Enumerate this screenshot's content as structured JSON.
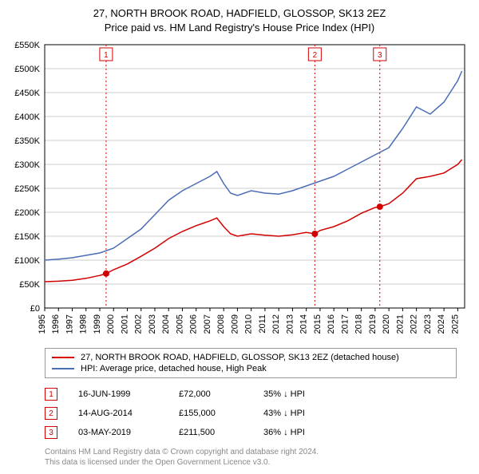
{
  "chart": {
    "type": "line",
    "title_line1": "27, NORTH BROOK ROAD, HADFIELD, GLOSSOP, SK13 2EZ",
    "title_line2": "Price paid vs. HM Land Registry's House Price Index (HPI)",
    "title_fontsize": 13,
    "background_color": "#ffffff",
    "plot_border_color": "#000000",
    "grid_color": "#cccccc",
    "axis_font_size": 11,
    "x": {
      "min": 1995,
      "max": 2025.5,
      "ticks": [
        1995,
        1996,
        1997,
        1998,
        1999,
        2000,
        2001,
        2002,
        2003,
        2004,
        2005,
        2006,
        2007,
        2008,
        2009,
        2010,
        2011,
        2012,
        2013,
        2014,
        2015,
        2016,
        2017,
        2018,
        2019,
        2020,
        2021,
        2022,
        2023,
        2024,
        2025
      ],
      "label_rotation": -90
    },
    "y": {
      "min": 0,
      "max": 550000,
      "ticks": [
        0,
        50000,
        100000,
        150000,
        200000,
        250000,
        300000,
        350000,
        400000,
        450000,
        500000,
        550000
      ],
      "tick_labels": [
        "£0",
        "£50K",
        "£100K",
        "£150K",
        "£200K",
        "£250K",
        "£300K",
        "£350K",
        "£400K",
        "£450K",
        "£500K",
        "£550K"
      ]
    },
    "series": [
      {
        "id": "property",
        "label": "27, NORTH BROOK ROAD, HADFIELD, GLOSSOP, SK13 2EZ (detached house)",
        "color": "#d40000",
        "line_width": 1.5,
        "points_x": [
          1995,
          1996,
          1997,
          1998,
          1999,
          1999.46,
          2000,
          2001,
          2002,
          2003,
          2004,
          2005,
          2006,
          2007,
          2007.5,
          2008,
          2008.5,
          2009,
          2010,
          2011,
          2012,
          2013,
          2014,
          2014.62,
          2015,
          2016,
          2017,
          2018,
          2019,
          2019.34,
          2020,
          2021,
          2022,
          2023,
          2024,
          2025,
          2025.3
        ],
        "points_y": [
          55000,
          56000,
          58000,
          62000,
          68000,
          72000,
          80000,
          92000,
          108000,
          125000,
          145000,
          160000,
          172000,
          182000,
          188000,
          170000,
          155000,
          150000,
          155000,
          152000,
          150000,
          153000,
          158000,
          155000,
          162000,
          170000,
          182000,
          198000,
          210000,
          211500,
          218000,
          240000,
          270000,
          275000,
          282000,
          300000,
          310000
        ]
      },
      {
        "id": "hpi",
        "label": "HPI: Average price, detached house, High Peak",
        "color": "#4a6db5",
        "line_width": 1.5,
        "points_x": [
          1995,
          1996,
          1997,
          1998,
          1999,
          2000,
          2001,
          2002,
          2003,
          2004,
          2005,
          2006,
          2007,
          2007.5,
          2008,
          2008.5,
          2009,
          2010,
          2011,
          2012,
          2013,
          2014,
          2015,
          2016,
          2017,
          2018,
          2019,
          2020,
          2021,
          2022,
          2023,
          2024,
          2025,
          2025.3
        ],
        "points_y": [
          100000,
          102000,
          105000,
          110000,
          115000,
          125000,
          145000,
          165000,
          195000,
          225000,
          245000,
          260000,
          275000,
          285000,
          260000,
          240000,
          235000,
          245000,
          240000,
          238000,
          245000,
          255000,
          265000,
          275000,
          290000,
          305000,
          320000,
          335000,
          375000,
          420000,
          405000,
          430000,
          475000,
          495000
        ]
      }
    ],
    "event_markers": [
      {
        "n": 1,
        "x": 1999.46,
        "y": 72000,
        "color": "#d40000"
      },
      {
        "n": 2,
        "x": 2014.62,
        "y": 155000,
        "color": "#d40000"
      },
      {
        "n": 3,
        "x": 2019.34,
        "y": 211500,
        "color": "#d40000"
      }
    ],
    "marker_line_dash": "2,3"
  },
  "events": [
    {
      "n": 1,
      "date": "16-JUN-1999",
      "price": "£72,000",
      "hpi": "35% ↓ HPI",
      "color": "#d40000"
    },
    {
      "n": 2,
      "date": "14-AUG-2014",
      "price": "£155,000",
      "hpi": "43% ↓ HPI",
      "color": "#d40000"
    },
    {
      "n": 3,
      "date": "03-MAY-2019",
      "price": "£211,500",
      "hpi": "36% ↓ HPI",
      "color": "#d40000"
    }
  ],
  "footer": {
    "line1": "Contains HM Land Registry data © Crown copyright and database right 2024.",
    "line2": "This data is licensed under the Open Government Licence v3.0."
  }
}
